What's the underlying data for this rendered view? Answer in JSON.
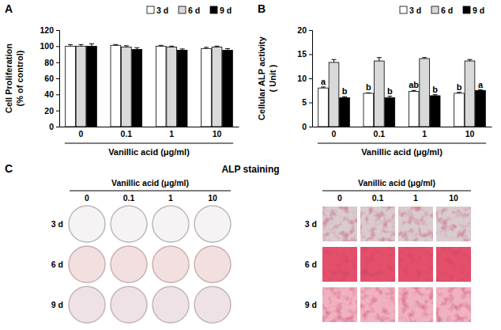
{
  "panel_labels": [
    "A",
    "B",
    "C"
  ],
  "chart_data": [
    {
      "type": "bar",
      "categories": [
        "0",
        "0.1",
        "1",
        "10"
      ],
      "xlabel": "Vanillic acid (μg/ml)",
      "ylabel": [
        "Cell Proliferation",
        "(% of control)"
      ],
      "ylim": [
        0,
        120
      ],
      "yticks": [
        0,
        20,
        40,
        60,
        80,
        100,
        120
      ],
      "legend": "top-right",
      "series": [
        {
          "name": "3 d",
          "color": "#ffffff",
          "values": [
            100,
            101,
            100,
            97
          ],
          "errors": [
            2,
            1,
            1,
            1.5
          ]
        },
        {
          "name": "6 d",
          "color": "#d9d9d9",
          "values": [
            100,
            99,
            99,
            99
          ],
          "errors": [
            2,
            1.5,
            1,
            1
          ]
        },
        {
          "name": "9 d",
          "color": "#000000",
          "values": [
            100,
            96,
            95,
            95
          ],
          "errors": [
            3,
            2,
            1.5,
            2
          ]
        }
      ]
    },
    {
      "type": "bar",
      "categories": [
        "0",
        "0.1",
        "1",
        "10"
      ],
      "xlabel": "Vanillic acid (μg/ml)",
      "ylabel": [
        "Cellular ALP activity",
        "( Unit )"
      ],
      "ylim": [
        0,
        20
      ],
      "yticks": [
        0,
        5,
        10,
        15,
        20
      ],
      "legend": "top-right",
      "series": [
        {
          "name": "3 d",
          "color": "#ffffff",
          "values": [
            8.0,
            6.9,
            7.3,
            6.9
          ],
          "errors": [
            0.2,
            0.1,
            0.2,
            0.2
          ],
          "letters": [
            "a",
            "b",
            "ab",
            "b"
          ]
        },
        {
          "name": "6 d",
          "color": "#d9d9d9",
          "values": [
            13.3,
            13.6,
            14.1,
            13.6
          ],
          "errors": [
            0.6,
            0.7,
            0.2,
            0.3
          ]
        },
        {
          "name": "9 d",
          "color": "#000000",
          "values": [
            6.0,
            6.0,
            6.4,
            7.5
          ],
          "errors": [
            0.2,
            0.3,
            0.2,
            0.1
          ],
          "letters": [
            "b",
            "b",
            "b",
            "a"
          ]
        }
      ]
    }
  ],
  "panel_c": {
    "title": "ALP staining",
    "panels": [
      {
        "header": "Vanillic acid (μg/ml)",
        "columns": [
          "0",
          "0.1",
          "1",
          "10"
        ],
        "rows": [
          "3 d",
          "6 d",
          "9 d"
        ]
      },
      {
        "header": "Vanillic acid (μg/ml)",
        "columns": [
          "0",
          "0.1",
          "1",
          "10"
        ],
        "rows": [
          "3 d",
          "6 d",
          "9 d"
        ]
      }
    ]
  }
}
